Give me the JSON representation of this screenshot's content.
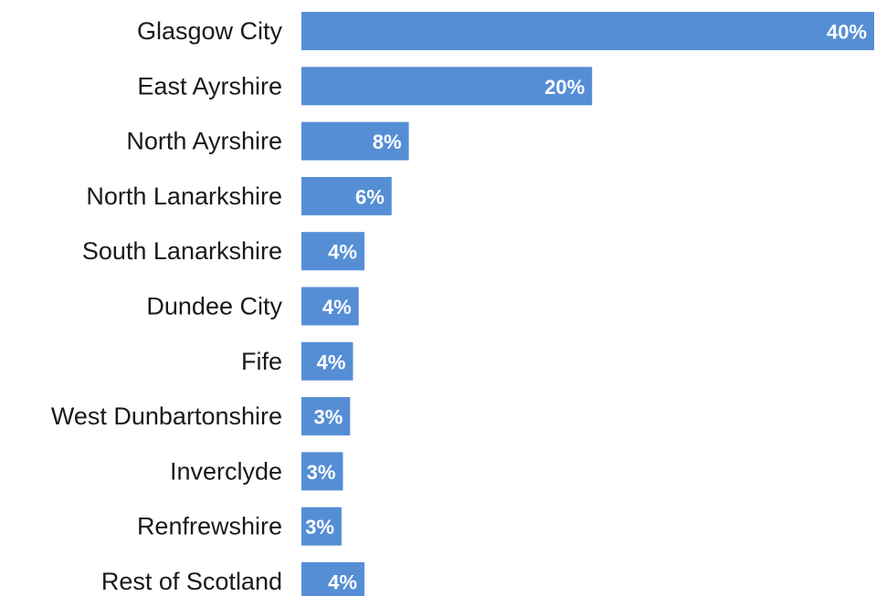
{
  "chart_data": {
    "type": "bar",
    "orientation": "horizontal",
    "categories": [
      "Glasgow City",
      "East Ayrshire",
      "North Ayrshire",
      "North Lanarkshire",
      "South Lanarkshire",
      "Dundee City",
      "Fife",
      "West Dunbartonshire",
      "Inverclyde",
      "Renfrewshire",
      "Rest of Scotland"
    ],
    "values": [
      40,
      20.3,
      7.5,
      6.3,
      4.4,
      4.0,
      3.6,
      3.4,
      2.9,
      2.8,
      4.4
    ],
    "value_labels": [
      "40%",
      "20%",
      "8%",
      "6%",
      "4%",
      "4%",
      "4%",
      "3%",
      "3%",
      "3%",
      "4%"
    ],
    "color": "#558ed5",
    "xlim": [
      0,
      40
    ]
  }
}
